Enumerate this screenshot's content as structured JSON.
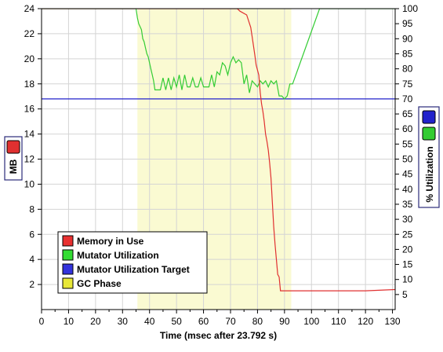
{
  "chart_data": {
    "type": "line",
    "title": "",
    "xlabel": "Time (msec after 23.792 s)",
    "ylabel_left": "MB",
    "ylabel_right": "% Utilization",
    "xlim": [
      0,
      131
    ],
    "xticks": [
      0,
      10,
      20,
      30,
      40,
      50,
      60,
      70,
      80,
      90,
      100,
      110,
      120,
      130
    ],
    "ylim_left": [
      0,
      24
    ],
    "yticks_left": [
      2,
      4,
      6,
      8,
      10,
      12,
      14,
      16,
      18,
      20,
      22,
      24
    ],
    "ylim_right": [
      0,
      100
    ],
    "yticks_right": [
      5,
      10,
      15,
      20,
      25,
      30,
      35,
      40,
      45,
      50,
      55,
      60,
      65,
      70,
      75,
      80,
      85,
      90,
      95,
      100
    ],
    "grid": true,
    "legend_position": "bottom-left",
    "colors": {
      "memory": "#e03030",
      "mutator": "#33cc33",
      "target": "#2222cc",
      "gc_phase": "#fafad2",
      "grid": "#d4d4d4"
    },
    "legend": [
      {
        "label": "Memory in Use",
        "color": "#e83030"
      },
      {
        "label": "Mutator Utilization",
        "color": "#33dd33"
      },
      {
        "label": "Mutator Utilization Target",
        "color": "#3333dd"
      },
      {
        "label": "GC Phase",
        "color": "#e8e838"
      }
    ],
    "left_badge_color": "#e03030",
    "right_badges": [
      {
        "color": "#2222cc"
      },
      {
        "color": "#33cc33"
      }
    ],
    "gc_phase": {
      "start": 35.5,
      "end": 92.5
    },
    "target_utilization": 70,
    "series": [
      {
        "name": "Memory in Use",
        "axis": "left",
        "x": [
          0,
          72.5,
          73.5,
          76,
          77.5,
          78,
          79,
          79.5,
          80.5,
          81,
          81.5,
          82,
          82.5,
          83,
          83.5,
          84,
          84.5,
          85,
          85.5,
          86,
          86.5,
          87,
          87.5,
          88,
          88.5,
          89,
          90,
          92.5,
          100,
          110,
          120,
          131
        ],
        "y": [
          24,
          24,
          23.8,
          23.5,
          22.5,
          21.8,
          20.3,
          19.5,
          18.7,
          17.3,
          16.4,
          15.8,
          15,
          14,
          13.4,
          12.7,
          11.7,
          10.5,
          8.5,
          6.6,
          5.2,
          4,
          2.8,
          2.6,
          1.5,
          1.5,
          1.5,
          1.5,
          1.5,
          1.5,
          1.5,
          1.6
        ]
      },
      {
        "name": "Mutator Utilization",
        "axis": "right",
        "x": [
          0,
          35,
          35.5,
          36,
          36.5,
          37,
          37.5,
          38,
          38.5,
          39,
          39.5,
          40,
          40.5,
          41,
          41.5,
          42,
          43,
          44,
          45,
          46,
          47,
          48,
          49,
          50,
          51,
          52,
          53,
          54,
          55,
          56,
          57,
          58,
          59,
          60,
          61,
          62,
          63,
          64,
          65,
          66,
          67,
          68,
          69,
          70,
          71,
          72,
          73,
          74,
          75,
          76,
          77,
          78,
          79,
          80,
          81,
          82,
          83,
          84,
          85,
          86,
          87,
          88,
          89,
          90,
          91,
          92,
          93,
          103,
          131
        ],
        "y": [
          100,
          100,
          97,
          95,
          94,
          93,
          90,
          89,
          87,
          85,
          84,
          82,
          80,
          78,
          76,
          73,
          73,
          73,
          77,
          73,
          77,
          73,
          77,
          74,
          78,
          73,
          78,
          74,
          74,
          77,
          74,
          74,
          77,
          74,
          74,
          74,
          78,
          74,
          79,
          78,
          82,
          81,
          78,
          82,
          84,
          82,
          83,
          82,
          75,
          78,
          72,
          76,
          75,
          74,
          76,
          75,
          76,
          74,
          76,
          75,
          76,
          71,
          71,
          70,
          71,
          75,
          75,
          100,
          100
        ]
      },
      {
        "name": "Mutator Utilization Target",
        "axis": "right",
        "x": [
          0,
          131
        ],
        "y": [
          70,
          70
        ]
      }
    ]
  }
}
